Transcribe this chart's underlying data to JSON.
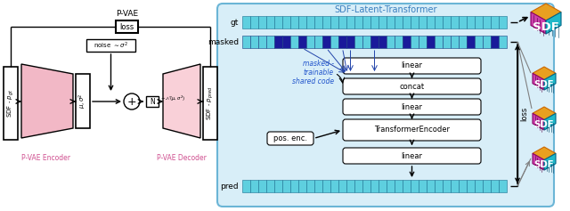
{
  "title_sdf_latent": "SDF-Latent-Transformer",
  "title_pvae": "P-VAE",
  "label_encoder": "P-VAE Encoder",
  "label_decoder": "P-VAE Decoder",
  "label_loss_pvae": "loss",
  "label_noise": "noise $\\sim \\sigma^2$",
  "label_gt": "gt",
  "label_masked": "masked",
  "label_masked_line1": "masked -",
  "label_masked_line2": "trainable",
  "label_masked_line3": "shared code",
  "label_pos_enc": "pos. enc.",
  "label_linear1": "linear",
  "label_concat": "concat",
  "label_linear2": "linear",
  "label_transformer": "TransformerEncoder",
  "label_linear3": "linear",
  "label_pred": "pred",
  "label_loss_slt": "loss",
  "bg_color": "#FFFFFF",
  "pvae_encoder_color": "#F2B8C6",
  "pvae_decoder_color": "#F9D0D8",
  "slt_bg_color": "#D8EEF8",
  "slt_border_color": "#6BB5D6",
  "bar_gt_color": "#5ECFDF",
  "bar_masked_light": "#5ECFDF",
  "bar_masked_dark": "#1A1A9A",
  "bar_pred_color": "#5ECFDF",
  "text_encoder_color": "#D05090",
  "text_decoder_color": "#D05090",
  "text_masked_color": "#2255CC"
}
